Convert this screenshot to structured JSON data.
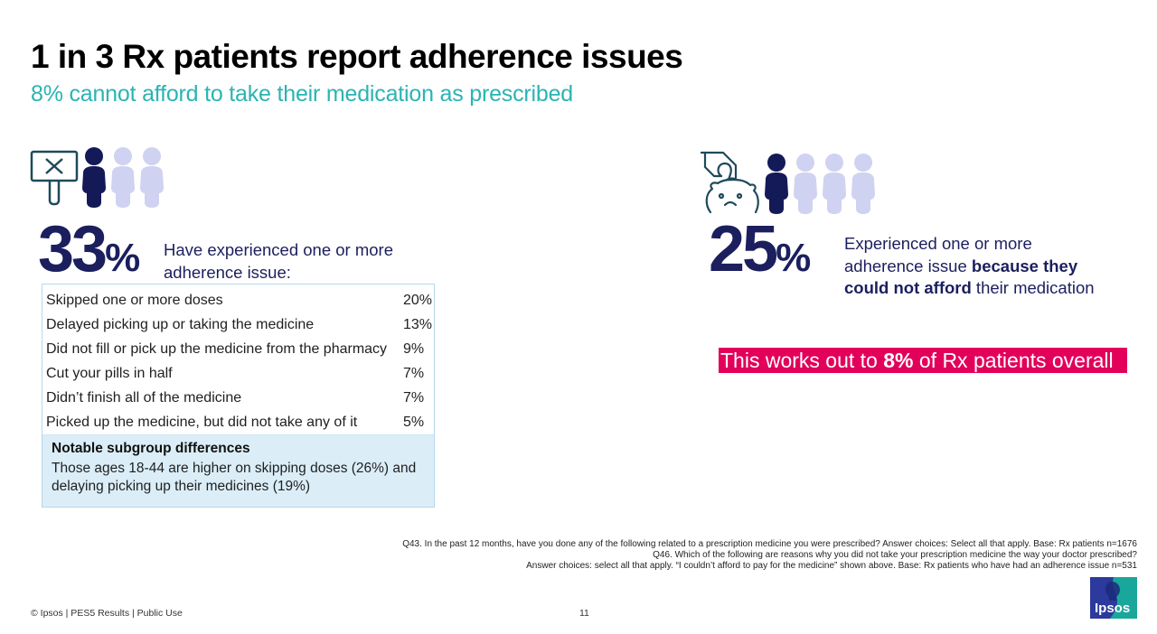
{
  "header": {
    "title": "1 in 3 Rx patients report adherence issues",
    "subtitle": "8% cannot afford to take their medication as prescribed"
  },
  "colors": {
    "navy": "#1b1f5e",
    "person_highlight": "#141a57",
    "person_muted": "#cfd2f0",
    "teal": "#2ab4b4",
    "magenta": "#e2005a",
    "box_border": "#b6d7ea",
    "box_fill": "#dbeef8"
  },
  "left_panel": {
    "icon": "sign-with-x-icon",
    "people_highlighted": 1,
    "people_total": 3,
    "stat_number": "33",
    "stat_unit": "%",
    "description": "Have experienced one or more adherence issue:",
    "issues": [
      {
        "label": "Skipped one or more doses",
        "value": "20%"
      },
      {
        "label": "Delayed picking up or taking the medicine",
        "value": "13%"
      },
      {
        "label": "Did not fill or pick up the medicine from the pharmacy",
        "value": "9%"
      },
      {
        "label": "Cut your pills in half",
        "value": "7%"
      },
      {
        "label": "Didn’t finish all of the medicine",
        "value": "7%"
      },
      {
        "label": "Picked up the medicine, but did not take any of it",
        "value": "5%"
      }
    ],
    "subgroup": {
      "title": "Notable subgroup differences",
      "text": "Those ages 18-44 are higher on skipping doses (26%) and delaying picking up their medicines (19%)"
    }
  },
  "right_panel": {
    "icon": "piggy-bank-hand-icon",
    "people_highlighted": 1,
    "people_total": 4,
    "stat_number": "25",
    "stat_unit": "%",
    "description_pre": "Experienced one or more adherence issue ",
    "description_bold": "because they could not afford",
    "description_post": " their medication",
    "callout_pre": "This works out to ",
    "callout_bold": "8%",
    "callout_post": " of Rx patients overall"
  },
  "footnotes": [
    "Q43. In the past 12 months, have you done any of the following related to a prescription medicine you were prescribed? Answer choices: Select all that apply. Base: Rx patients n=1676",
    "Q46. Which of the following are reasons why you did not take your prescription medicine the way your doctor prescribed?",
    "Answer choices: select all that apply. “I couldn’t afford to pay for the medicine” shown above. Base: Rx patients who have had an adherence issue n=531"
  ],
  "footer": {
    "copyright": "© Ipsos | PES5 Results | Public Use",
    "page_number": "11",
    "logo_text": "Ipsos"
  }
}
